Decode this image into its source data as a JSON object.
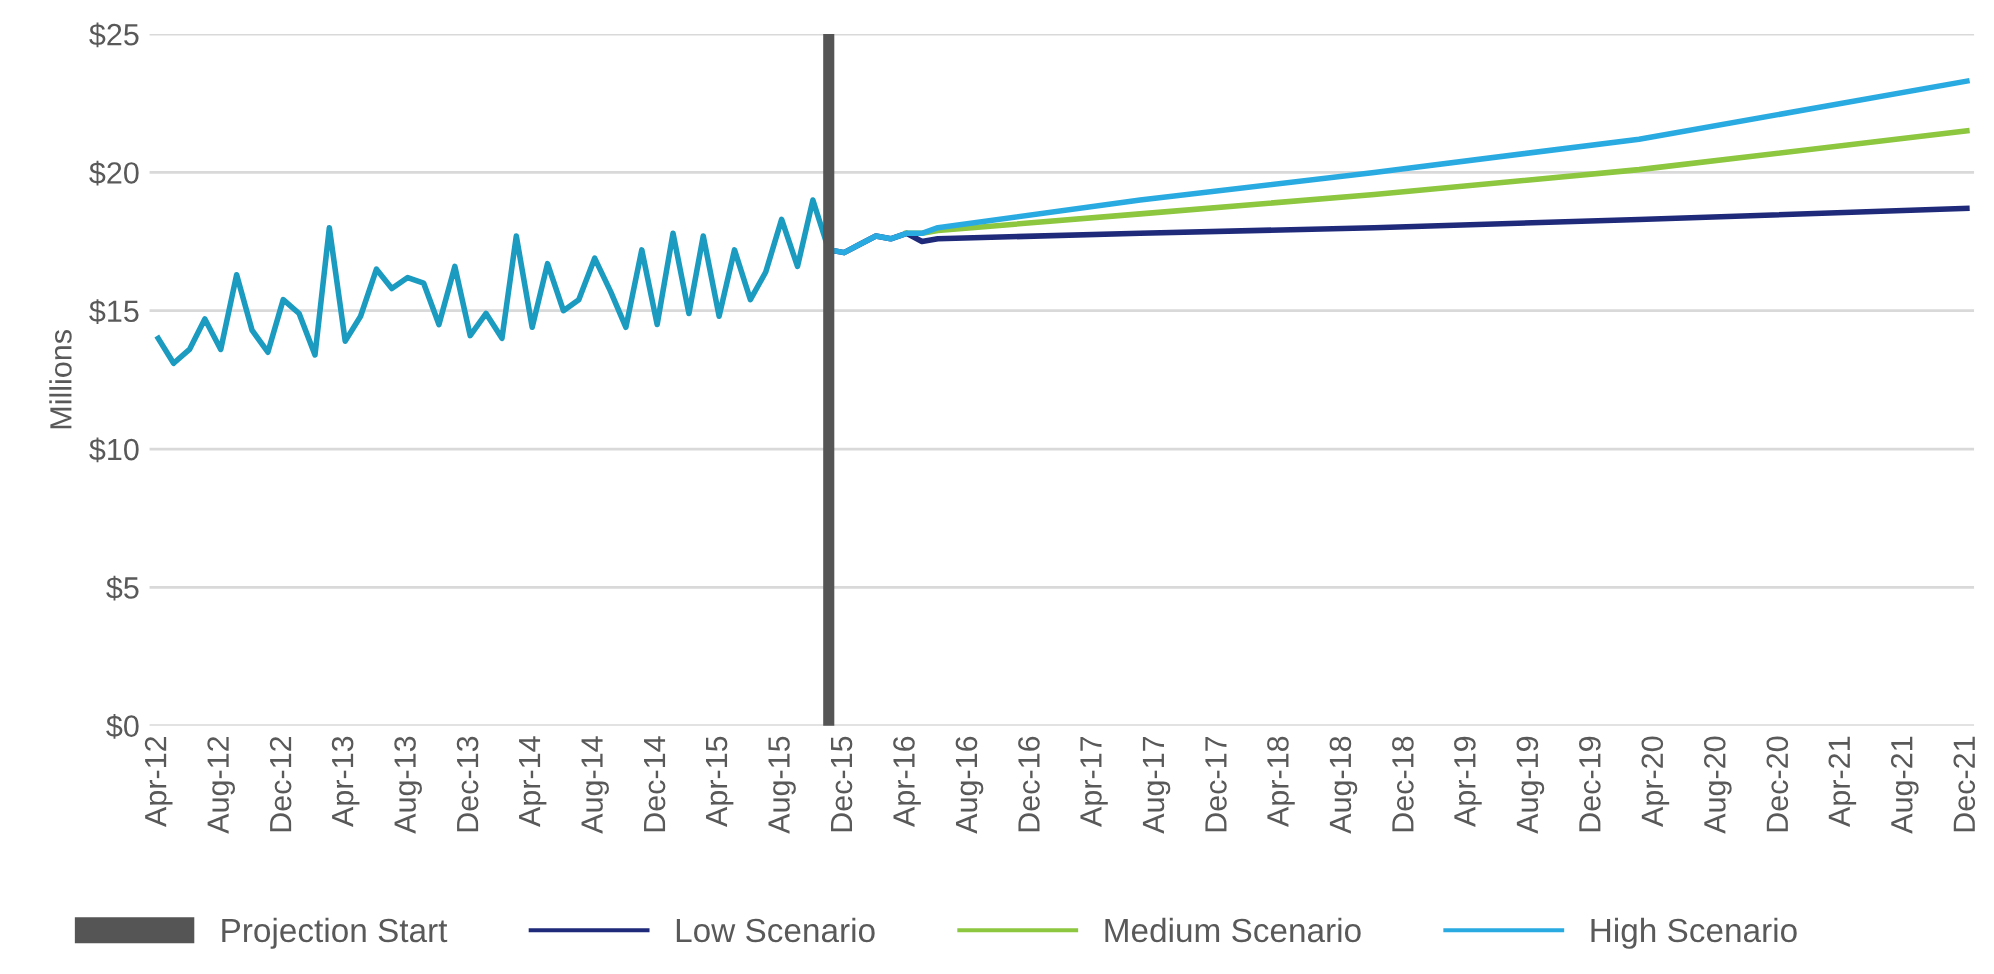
{
  "chart_data": {
    "type": "line",
    "ylabel": "Millions",
    "xlim": [
      "2012-03-15",
      "2021-12-15"
    ],
    "ylim": [
      0,
      25
    ],
    "yticks": [
      {
        "value": 0,
        "label": "$0"
      },
      {
        "value": 5,
        "label": "$5"
      },
      {
        "value": 10,
        "label": "$10"
      },
      {
        "value": 15,
        "label": "$15"
      },
      {
        "value": 20,
        "label": "$20"
      },
      {
        "value": 25,
        "label": "$25"
      }
    ],
    "xticks": [
      {
        "value": "2012-04",
        "label": "Apr-12"
      },
      {
        "value": "2012-08",
        "label": "Aug-12"
      },
      {
        "value": "2012-12",
        "label": "Dec-12"
      },
      {
        "value": "2013-04",
        "label": "Apr-13"
      },
      {
        "value": "2013-08",
        "label": "Aug-13"
      },
      {
        "value": "2013-12",
        "label": "Dec-13"
      },
      {
        "value": "2014-04",
        "label": "Apr-14"
      },
      {
        "value": "2014-08",
        "label": "Aug-14"
      },
      {
        "value": "2014-12",
        "label": "Dec-14"
      },
      {
        "value": "2015-04",
        "label": "Apr-15"
      },
      {
        "value": "2015-08",
        "label": "Aug-15"
      },
      {
        "value": "2015-12",
        "label": "Dec-15"
      },
      {
        "value": "2016-04",
        "label": "Apr-16"
      },
      {
        "value": "2016-08",
        "label": "Aug-16"
      },
      {
        "value": "2016-12",
        "label": "Dec-16"
      },
      {
        "value": "2017-04",
        "label": "Apr-17"
      },
      {
        "value": "2017-08",
        "label": "Aug-17"
      },
      {
        "value": "2017-12",
        "label": "Dec-17"
      },
      {
        "value": "2018-04",
        "label": "Apr-18"
      },
      {
        "value": "2018-08",
        "label": "Aug-18"
      },
      {
        "value": "2018-12",
        "label": "Dec-18"
      },
      {
        "value": "2019-04",
        "label": "Apr-19"
      },
      {
        "value": "2019-08",
        "label": "Aug-19"
      },
      {
        "value": "2019-12",
        "label": "Dec-19"
      },
      {
        "value": "2020-04",
        "label": "Apr-20"
      },
      {
        "value": "2020-08",
        "label": "Aug-20"
      },
      {
        "value": "2020-12",
        "label": "Dec-20"
      },
      {
        "value": "2021-04",
        "label": "Apr-21"
      },
      {
        "value": "2021-08",
        "label": "Aug-21"
      },
      {
        "value": "2021-12",
        "label": "Dec-21"
      }
    ],
    "grid": "y",
    "legend": "bottom",
    "ref_lines": [
      {
        "axis": "x",
        "value": "2015-11",
        "label": "Projection Start",
        "color": "#555555"
      }
    ],
    "series": [
      {
        "color": "#1b9bc0",
        "x": [
          "2012-04",
          "2012-05",
          "2012-06",
          "2012-07",
          "2012-08",
          "2012-09",
          "2012-10",
          "2012-11",
          "2012-12",
          "2013-01",
          "2013-02",
          "2013-03",
          "2013-04",
          "2013-05",
          "2013-06",
          "2013-07",
          "2013-08",
          "2013-09",
          "2013-10",
          "2013-11",
          "2013-12",
          "2014-01",
          "2014-02",
          "2014-03",
          "2014-04",
          "2014-05",
          "2014-06",
          "2014-07",
          "2014-08",
          "2014-09",
          "2014-10",
          "2014-11",
          "2014-12",
          "2015-01",
          "2015-02",
          "2015-03",
          "2015-04",
          "2015-05",
          "2015-06",
          "2015-07",
          "2015-08",
          "2015-09",
          "2015-10",
          "2015-11"
        ],
        "values": [
          14.0,
          13.1,
          13.6,
          14.7,
          13.6,
          16.3,
          14.3,
          13.5,
          15.4,
          14.9,
          13.4,
          18.0,
          13.9,
          14.8,
          16.5,
          15.8,
          16.2,
          16.0,
          14.5,
          16.6,
          14.1,
          14.9,
          14.0,
          17.7,
          14.4,
          16.7,
          15.0,
          15.4,
          16.9,
          15.7,
          14.4,
          17.2,
          14.5,
          17.8,
          14.9,
          17.7,
          14.8,
          17.2,
          15.4,
          16.4,
          18.3,
          16.6,
          19.0,
          17.2
        ]
      },
      {
        "name": "Low Scenario",
        "color": "#1f2a7a",
        "x": [
          "2015-11",
          "2015-12",
          "2016-01",
          "2016-02",
          "2016-03",
          "2016-04",
          "2016-05",
          "2016-06",
          "2017-07",
          "2018-10",
          "2020-03",
          "2021-12"
        ],
        "values": [
          17.2,
          17.1,
          17.4,
          17.7,
          17.6,
          17.8,
          17.5,
          17.6,
          17.8,
          18.0,
          18.3,
          18.7
        ]
      },
      {
        "name": "Medium Scenario",
        "color": "#8dc63f",
        "x": [
          "2016-04",
          "2016-05",
          "2016-06",
          "2017-07",
          "2018-10",
          "2020-03",
          "2021-12"
        ],
        "values": [
          17.8,
          17.8,
          17.9,
          18.5,
          19.2,
          20.1,
          21.5
        ]
      },
      {
        "name": "High Scenario",
        "color": "#29abe2",
        "x": [
          "2015-11",
          "2015-12",
          "2016-01",
          "2016-02",
          "2016-03",
          "2016-04",
          "2016-05",
          "2016-06",
          "2017-07",
          "2018-10",
          "2020-03",
          "2021-12"
        ],
        "values": [
          17.2,
          17.1,
          17.4,
          17.7,
          17.6,
          17.8,
          17.8,
          18.0,
          19.0,
          20.0,
          21.2,
          23.3
        ]
      }
    ]
  }
}
